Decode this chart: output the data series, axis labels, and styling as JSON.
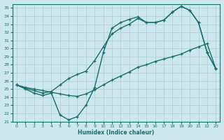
{
  "xlabel": "Humidex (Indice chaleur)",
  "bg_color": "#cce8ec",
  "grid_color": "#b0d0d8",
  "line_color": "#1a6e6e",
  "xlim": [
    -0.5,
    23.5
  ],
  "ylim": [
    21,
    35.5
  ],
  "yticks": [
    21,
    22,
    23,
    24,
    25,
    26,
    27,
    28,
    29,
    30,
    31,
    32,
    33,
    34,
    35
  ],
  "xticks": [
    0,
    1,
    2,
    3,
    4,
    5,
    6,
    7,
    8,
    9,
    10,
    11,
    12,
    13,
    14,
    15,
    16,
    17,
    18,
    19,
    20,
    21,
    22,
    23
  ],
  "line1_x": [
    0,
    1,
    2,
    3,
    4,
    5,
    6,
    7,
    8,
    9,
    10,
    11,
    12,
    13,
    14,
    15,
    16,
    17,
    18,
    19,
    20,
    21,
    22,
    23
  ],
  "line1_y": [
    25.5,
    25.0,
    24.5,
    24.2,
    24.5,
    21.8,
    21.2,
    21.6,
    23.0,
    25.2,
    29.5,
    32.5,
    33.2,
    33.6,
    33.9,
    33.2,
    33.2,
    33.5,
    34.5,
    35.2,
    34.7,
    33.2,
    29.5,
    27.5
  ],
  "line2_x": [
    0,
    1,
    2,
    3,
    4,
    5,
    6,
    7,
    8,
    9,
    10,
    11,
    12,
    13,
    14,
    15,
    16,
    17,
    18,
    19,
    20,
    21,
    22,
    23
  ],
  "line2_y": [
    25.5,
    25.1,
    24.8,
    24.5,
    24.7,
    25.5,
    26.3,
    26.8,
    27.2,
    28.5,
    30.2,
    31.8,
    32.5,
    33.0,
    33.7,
    33.2,
    33.2,
    33.5,
    34.5,
    35.2,
    34.7,
    33.2,
    29.5,
    27.5
  ],
  "line3_x": [
    0,
    1,
    2,
    3,
    4,
    5,
    6,
    7,
    8,
    9,
    10,
    11,
    12,
    13,
    14,
    15,
    16,
    17,
    18,
    19,
    20,
    21,
    22,
    23
  ],
  "line3_y": [
    25.5,
    25.2,
    25.0,
    24.8,
    24.6,
    24.4,
    24.2,
    24.1,
    24.4,
    24.9,
    25.5,
    26.1,
    26.6,
    27.1,
    27.7,
    28.0,
    28.4,
    28.7,
    29.0,
    29.3,
    29.8,
    30.2,
    30.6,
    27.5
  ],
  "markersize": 3.5,
  "linewidth": 1.0
}
